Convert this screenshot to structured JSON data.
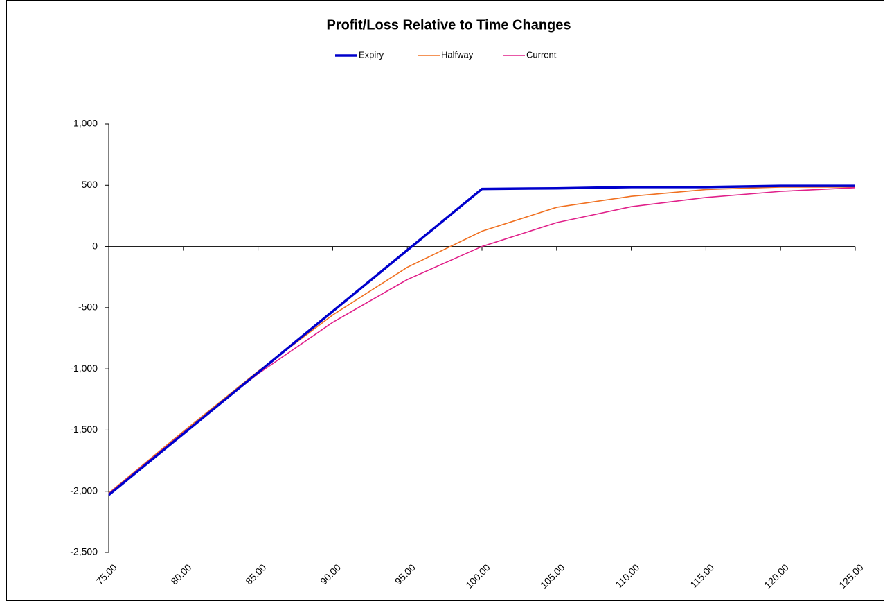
{
  "chart_data": {
    "type": "line",
    "title": "Profit/Loss Relative to Time Changes",
    "categories": [
      "75.00",
      "80.00",
      "85.00",
      "90.00",
      "95.00",
      "100.00",
      "105.00",
      "110.00",
      "115.00",
      "120.00",
      "125.00"
    ],
    "series": [
      {
        "name": "Expiry",
        "color": "#0000cc",
        "values": [
          -2030,
          -1530,
          -1030,
          -530,
          -30,
          470,
          475,
          485,
          485,
          495,
          495
        ]
      },
      {
        "name": "Halfway",
        "color": "#f07020",
        "values": [
          -2015,
          -1510,
          -1020,
          -560,
          -170,
          125,
          320,
          410,
          465,
          485,
          485
        ]
      },
      {
        "name": "Current",
        "color": "#e0208a",
        "values": [
          -2020,
          -1520,
          -1040,
          -620,
          -270,
          0,
          195,
          325,
          400,
          450,
          480
        ]
      }
    ],
    "ylim": [
      -2500,
      1000
    ],
    "yticks": [
      {
        "value": 1000,
        "label": "1,000"
      },
      500,
      0,
      -500,
      {
        "value": -1000,
        "label": "-1,000"
      },
      {
        "value": -1500,
        "label": "-1,500"
      },
      {
        "value": -2000,
        "label": "-2,000"
      },
      {
        "value": -2500,
        "label": "-2,500"
      }
    ],
    "legend": "top",
    "grid": false
  }
}
